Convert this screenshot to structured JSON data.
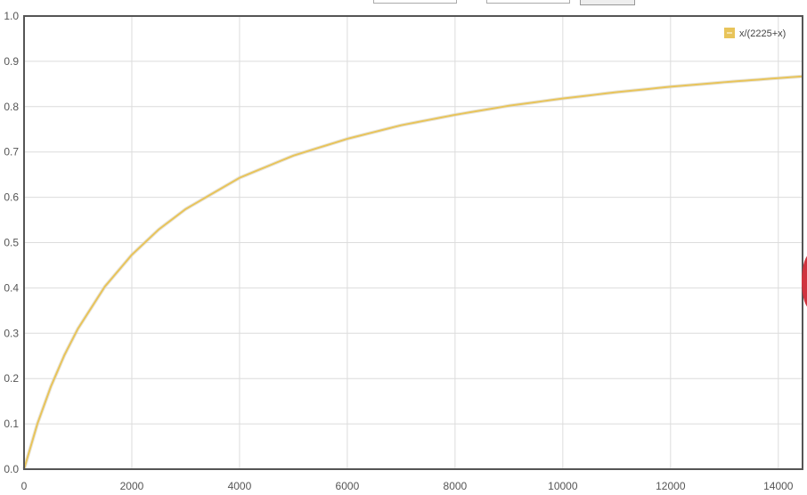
{
  "top_controls": {
    "label_from": "",
    "label_to": "",
    "input_from_value": "",
    "input_to_value": "",
    "button_label": ""
  },
  "chart_data": {
    "type": "line",
    "title": "",
    "xlabel": "",
    "ylabel": "",
    "xlim": [
      0,
      14450
    ],
    "ylim": [
      0,
      1.0
    ],
    "grid": true,
    "legend_position": "top-right",
    "x_ticks": [
      "0",
      "2000",
      "4000",
      "6000",
      "8000",
      "10000",
      "12000",
      "14000"
    ],
    "y_ticks": [
      "0.0",
      "0.1",
      "0.2",
      "0.3",
      "0.4",
      "0.5",
      "0.6",
      "0.7",
      "0.8",
      "0.9",
      "1.0"
    ],
    "series": [
      {
        "name": "x/(2225+x)",
        "color": "#e8c45a",
        "x": [
          0,
          250,
          500,
          750,
          1000,
          1500,
          2000,
          2500,
          3000,
          4000,
          5000,
          6000,
          7000,
          8000,
          9000,
          10000,
          11000,
          12000,
          13000,
          14000,
          14450
        ],
        "y": [
          0,
          0.101,
          0.183,
          0.252,
          0.31,
          0.403,
          0.473,
          0.529,
          0.574,
          0.643,
          0.692,
          0.729,
          0.759,
          0.782,
          0.802,
          0.818,
          0.832,
          0.844,
          0.854,
          0.863,
          0.867
        ]
      }
    ]
  }
}
